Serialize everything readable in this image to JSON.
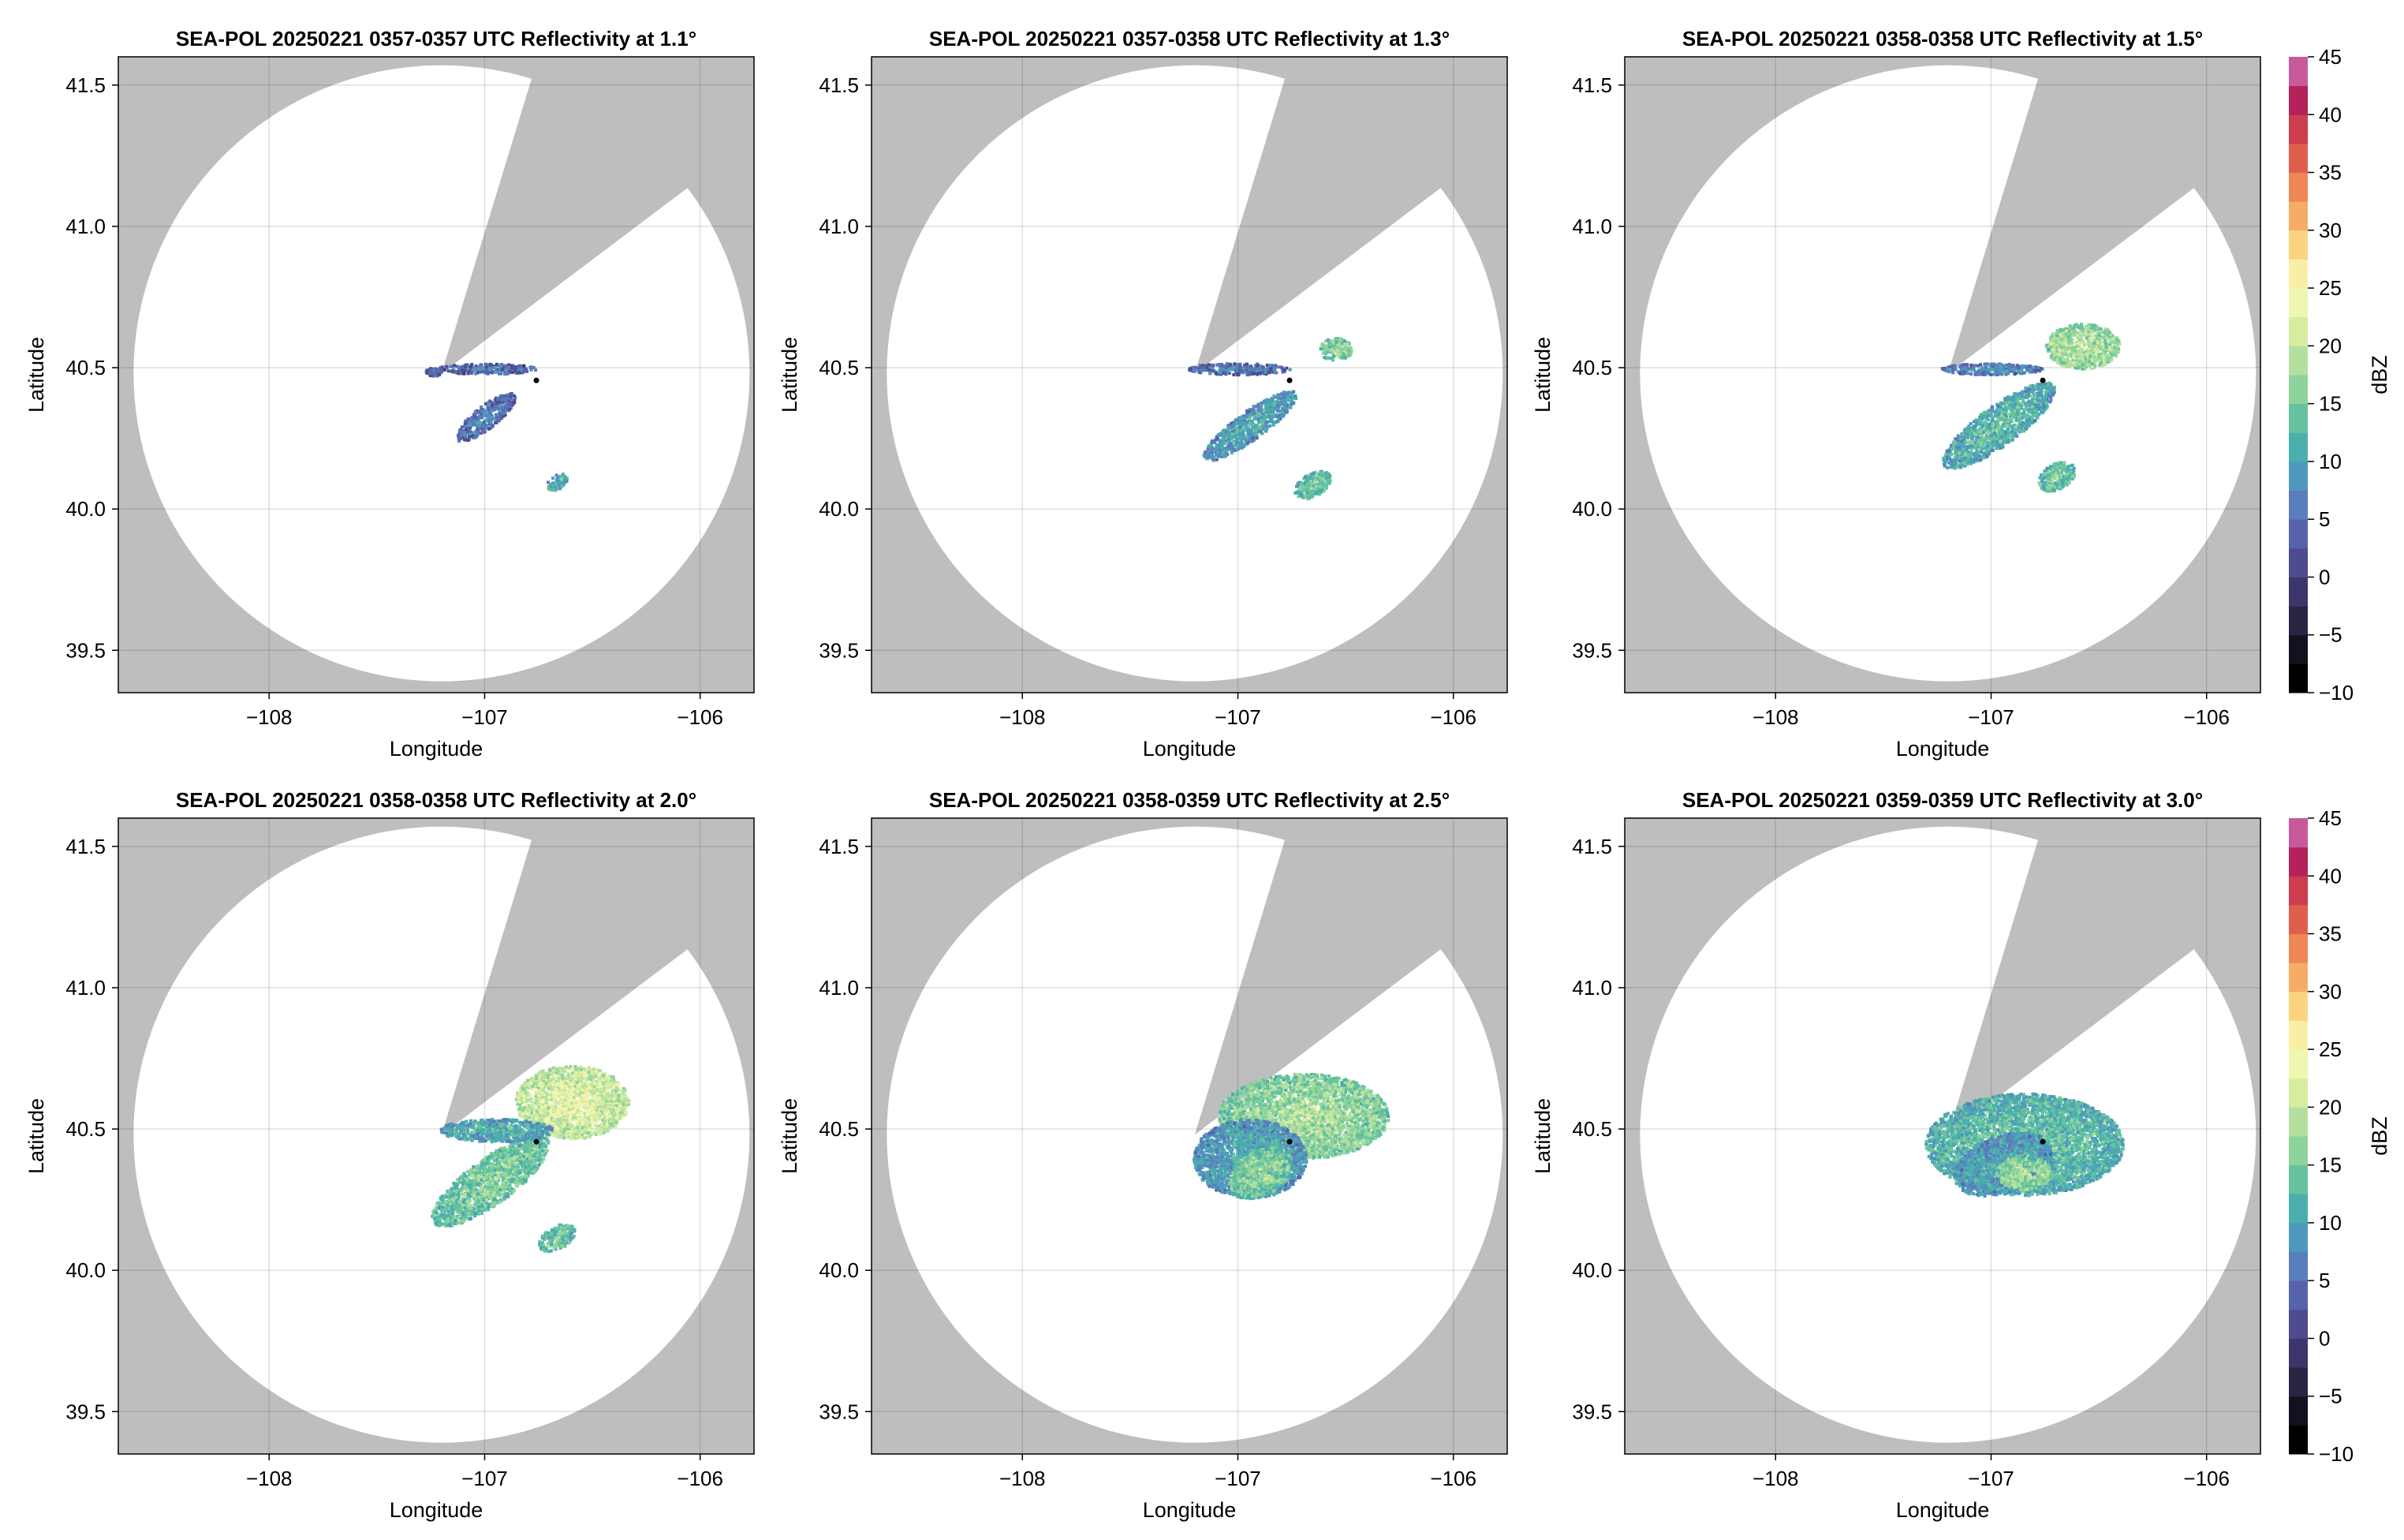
{
  "colorbar": {
    "label": "dBZ",
    "range": [
      -10,
      45
    ],
    "ticks": [
      -10,
      -5,
      0,
      5,
      10,
      15,
      20,
      25,
      30,
      35,
      40,
      45
    ],
    "step": 2.5,
    "colors": [
      "#000000",
      "#14101d",
      "#2a2344",
      "#3d366a",
      "#4e4b8e",
      "#5663ab",
      "#5a7dbc",
      "#4f98bd",
      "#4aafad",
      "#66c29e",
      "#8ed39c",
      "#b4e09f",
      "#d7ec9f",
      "#eef6b0",
      "#f9efa4",
      "#fbd47f",
      "#f5ad66",
      "#ee8655",
      "#e05f4c",
      "#cc3d4e",
      "#b3225a",
      "#c85a9c",
      "#dc90c6",
      "#cfa5d4",
      "#a883c0",
      "#835aa6",
      "#5d3290",
      "#3a0a67"
    ]
  },
  "shared": {
    "xlabel": "Longitude",
    "ylabel": "Latitude",
    "xlim": [
      -108.7,
      -105.75
    ],
    "ylim": [
      39.35,
      41.6
    ],
    "xticks": [
      -108,
      -107,
      -106
    ],
    "xtick_labels": [
      "−108",
      "−107",
      "−106"
    ],
    "yticks": [
      39.5,
      40.0,
      40.5,
      41.0,
      41.5
    ],
    "ytick_labels": [
      "39.5",
      "40.0",
      "40.5",
      "41.0",
      "41.5"
    ],
    "grid": true,
    "background_color": "#bebebe",
    "coverage_color": "#ffffff",
    "radar_center": [
      -107.2,
      40.48
    ],
    "radar_range_deg_lat": 1.09,
    "radar_point": [
      -106.76,
      40.455
    ]
  },
  "chart_data": [
    {
      "type": "heatmap",
      "title": "SEA-POL 20250221 0357-0357 UTC Reflectivity at 1.1°",
      "elevation_deg": 1.1,
      "has_colorbar": false,
      "echoes": [
        {
          "center": [
            -107.0,
            40.5
          ],
          "extent": [
            0.18,
            0.018
          ],
          "tilt": 0,
          "dbz": 3
        },
        {
          "center": [
            -107.0,
            40.33
          ],
          "extent": [
            0.13,
            0.04
          ],
          "tilt": -38,
          "dbz": 4
        },
        {
          "center": [
            -106.67,
            40.1
          ],
          "extent": [
            0.04,
            0.025
          ],
          "tilt": -30,
          "dbz": 10
        },
        {
          "center": [
            -107.24,
            40.49
          ],
          "extent": [
            0.03,
            0.015
          ],
          "tilt": 0,
          "dbz": 2
        }
      ]
    },
    {
      "type": "heatmap",
      "title": "SEA-POL 20250221 0357-0358 UTC Reflectivity at 1.3°",
      "elevation_deg": 1.3,
      "has_colorbar": false,
      "echoes": [
        {
          "center": [
            -107.0,
            40.5
          ],
          "extent": [
            0.18,
            0.02
          ],
          "tilt": 0,
          "dbz": 4
        },
        {
          "center": [
            -106.95,
            40.3
          ],
          "extent": [
            0.2,
            0.05
          ],
          "tilt": -36,
          "dbz": 8
        },
        {
          "center": [
            -106.66,
            40.09
          ],
          "extent": [
            0.07,
            0.04
          ],
          "tilt": -30,
          "dbz": 12
        },
        {
          "center": [
            -106.55,
            40.57
          ],
          "extent": [
            0.06,
            0.04
          ],
          "tilt": 0,
          "dbz": 14
        }
      ]
    },
    {
      "type": "heatmap",
      "title": "SEA-POL 20250221 0358-0358 UTC Reflectivity at 1.5°",
      "elevation_deg": 1.5,
      "has_colorbar": true,
      "echoes": [
        {
          "center": [
            -107.0,
            40.5
          ],
          "extent": [
            0.18,
            0.02
          ],
          "tilt": 0,
          "dbz": 5
        },
        {
          "center": [
            -106.97,
            40.3
          ],
          "extent": [
            0.24,
            0.07
          ],
          "tilt": -36,
          "dbz": 10
        },
        {
          "center": [
            -106.7,
            40.12
          ],
          "extent": [
            0.07,
            0.045
          ],
          "tilt": -30,
          "dbz": 12
        },
        {
          "center": [
            -106.58,
            40.58
          ],
          "extent": [
            0.13,
            0.08
          ],
          "tilt": 0,
          "dbz": 16
        }
      ]
    },
    {
      "type": "heatmap",
      "title": "SEA-POL 20250221 0358-0358 UTC Reflectivity at 2.0°",
      "elevation_deg": 2.0,
      "has_colorbar": false,
      "echoes": [
        {
          "center": [
            -106.6,
            40.6
          ],
          "extent": [
            0.2,
            0.13
          ],
          "tilt": 0,
          "dbz": 19
        },
        {
          "center": [
            -106.98,
            40.32
          ],
          "extent": [
            0.25,
            0.08
          ],
          "tilt": -36,
          "dbz": 13
        },
        {
          "center": [
            -106.95,
            40.5
          ],
          "extent": [
            0.2,
            0.04
          ],
          "tilt": 0,
          "dbz": 9
        },
        {
          "center": [
            -106.67,
            40.12
          ],
          "extent": [
            0.07,
            0.04
          ],
          "tilt": -30,
          "dbz": 12
        }
      ]
    },
    {
      "type": "heatmap",
      "title": "SEA-POL 20250221 0358-0359 UTC Reflectivity at 2.5°",
      "elevation_deg": 2.5,
      "has_colorbar": false,
      "echoes": [
        {
          "center": [
            -106.7,
            40.55
          ],
          "extent": [
            0.3,
            0.15
          ],
          "tilt": 0,
          "dbz": 15
        },
        {
          "center": [
            -106.95,
            40.4
          ],
          "extent": [
            0.2,
            0.14
          ],
          "tilt": 0,
          "dbz": 8
        },
        {
          "center": [
            -106.9,
            40.35
          ],
          "extent": [
            0.12,
            0.08
          ],
          "tilt": -30,
          "dbz": 14
        }
      ]
    },
    {
      "type": "heatmap",
      "title": "SEA-POL 20250221 0359-0359 UTC Reflectivity at 3.0°",
      "elevation_deg": 3.0,
      "has_colorbar": true,
      "echoes": [
        {
          "center": [
            -106.85,
            40.45
          ],
          "extent": [
            0.35,
            0.18
          ],
          "tilt": 0,
          "dbz": 11
        },
        {
          "center": [
            -106.95,
            40.38
          ],
          "extent": [
            0.18,
            0.1
          ],
          "tilt": -20,
          "dbz": 8
        },
        {
          "center": [
            -106.85,
            40.35
          ],
          "extent": [
            0.1,
            0.06
          ],
          "tilt": 0,
          "dbz": 15
        }
      ]
    }
  ]
}
